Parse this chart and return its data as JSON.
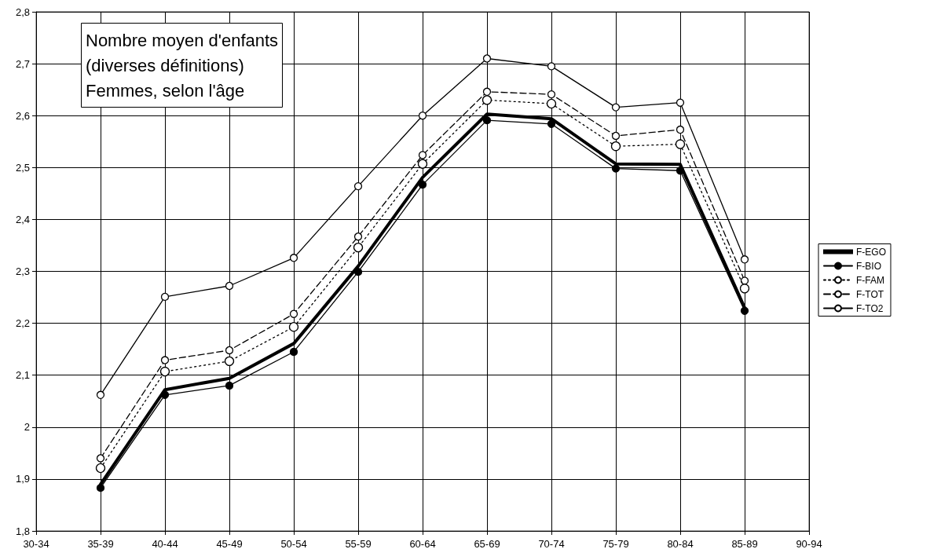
{
  "chart_data": {
    "type": "line",
    "title": "Nombre moyen d'enfants\n(diverses définitions)\nFemmes, selon l'âge",
    "categories": [
      "30-34",
      "35-39",
      "40-44",
      "45-49",
      "50-54",
      "55-59",
      "60-64",
      "65-69",
      "70-74",
      "75-79",
      "80-84",
      "85-89",
      "90-94"
    ],
    "series": [
      {
        "name": "F-EGO",
        "color": "#000000",
        "marker": "none",
        "line_style": "solid",
        "values": [
          null,
          1.89,
          2.072,
          2.094,
          2.161,
          2.31,
          2.481,
          2.603,
          2.594,
          2.507,
          2.506,
          2.23,
          null
        ]
      },
      {
        "name": "F-BIO",
        "color": "#000000",
        "marker": "circle",
        "line_style": "solid",
        "values": [
          null,
          1.883,
          2.062,
          2.08,
          2.145,
          2.299,
          2.467,
          2.591,
          2.584,
          2.498,
          2.494,
          2.224,
          null
        ]
      },
      {
        "name": "F-FAM",
        "color": "#000000",
        "marker": "circle",
        "line_style": "dotted",
        "values": [
          null,
          1.921,
          2.107,
          2.127,
          2.193,
          2.346,
          2.507,
          2.63,
          2.623,
          2.541,
          2.545,
          2.267,
          null
        ]
      },
      {
        "name": "F-TOT",
        "color": "#000000",
        "marker": "circle",
        "line_style": "dashed",
        "values": [
          null,
          1.94,
          2.129,
          2.148,
          2.218,
          2.367,
          2.524,
          2.646,
          2.641,
          2.561,
          2.573,
          2.282,
          null
        ]
      },
      {
        "name": "F-TO2",
        "color": "#000000",
        "marker": "circle",
        "line_style": "solid",
        "values": [
          null,
          2.062,
          2.251,
          2.272,
          2.326,
          2.464,
          2.6,
          2.71,
          2.695,
          2.616,
          2.625,
          2.323,
          null
        ]
      }
    ],
    "ylim": [
      1.8,
      2.8
    ],
    "yticks": [
      {
        "value": 1.8,
        "label": "1,8"
      },
      {
        "value": 1.9,
        "label": "1,9"
      },
      2,
      {
        "value": 2.1,
        "label": "2,1"
      },
      {
        "value": 2.2,
        "label": "2,2"
      },
      {
        "value": 2.3,
        "label": "2,3"
      },
      {
        "value": 2.4,
        "label": "2,4"
      },
      {
        "value": 2.5,
        "label": "2,5"
      },
      {
        "value": 2.6,
        "label": "2,6"
      },
      {
        "value": 2.7,
        "label": "2,7"
      },
      {
        "value": 2.8,
        "label": "2,8"
      }
    ],
    "grid": true,
    "legend": "right"
  }
}
